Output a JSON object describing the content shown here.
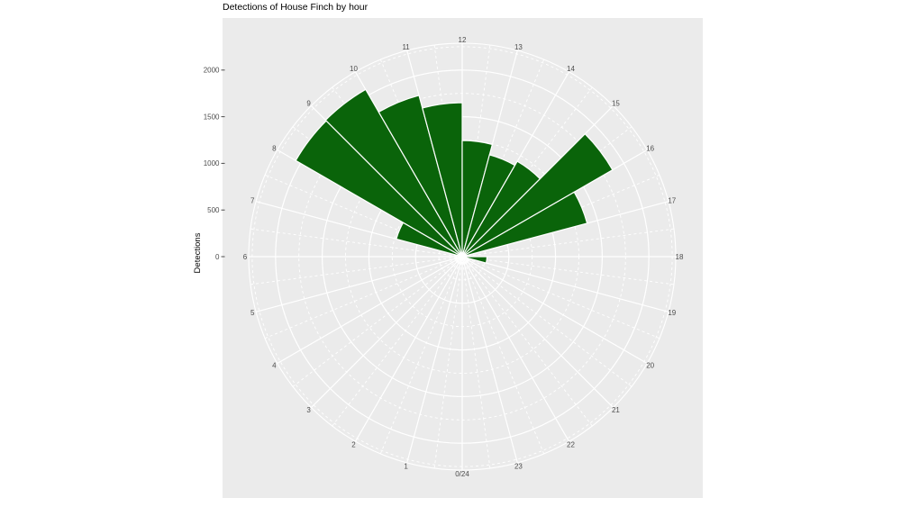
{
  "title": "Detections of House Finch by hour",
  "axes": {
    "y_title": "Detections",
    "r_tick_labels": [
      "0",
      "500",
      "1000",
      "1500",
      "2000"
    ],
    "hour_labels": [
      "0/24",
      "1",
      "2",
      "3",
      "4",
      "5",
      "6",
      "7",
      "8",
      "9",
      "10",
      "11",
      "12",
      "13",
      "14",
      "15",
      "16",
      "17",
      "18",
      "19",
      "20",
      "21",
      "22",
      "23"
    ]
  },
  "chart_data": {
    "type": "polar_bar",
    "title": "Detections of House Finch by hour",
    "ylabel": "Detections",
    "hours": [
      0,
      1,
      2,
      3,
      4,
      5,
      6,
      7,
      8,
      9,
      10,
      11,
      12,
      13,
      14,
      15,
      16,
      17,
      18,
      19,
      20,
      21,
      22,
      23
    ],
    "values": [
      0,
      0,
      0,
      0,
      0,
      0,
      0,
      730,
      2060,
      2070,
      1790,
      1650,
      1245,
      1130,
      1180,
      1860,
      1385,
      0,
      265,
      0,
      0,
      0,
      0,
      0
    ],
    "r_major_ticks": [
      0,
      500,
      1000,
      1500,
      2000
    ],
    "r_minor_ticks": [
      250,
      750,
      1250,
      1750,
      2250
    ],
    "r_axis_max": 2300,
    "orientation": "hour 0/24 at bottom, hours increase clockwise, 12 at top; each bar spans from hour h to h+1 (15 degrees)",
    "legend": "none",
    "grid": "on",
    "bar_fill": "#0a640a",
    "bar_stroke": "#ffffff",
    "panel_bg": "#ebebeb",
    "grid_color": "#ffffff",
    "axis_text_color": "#4d4d4d",
    "tick_mark_color": "#4d4d4d"
  }
}
